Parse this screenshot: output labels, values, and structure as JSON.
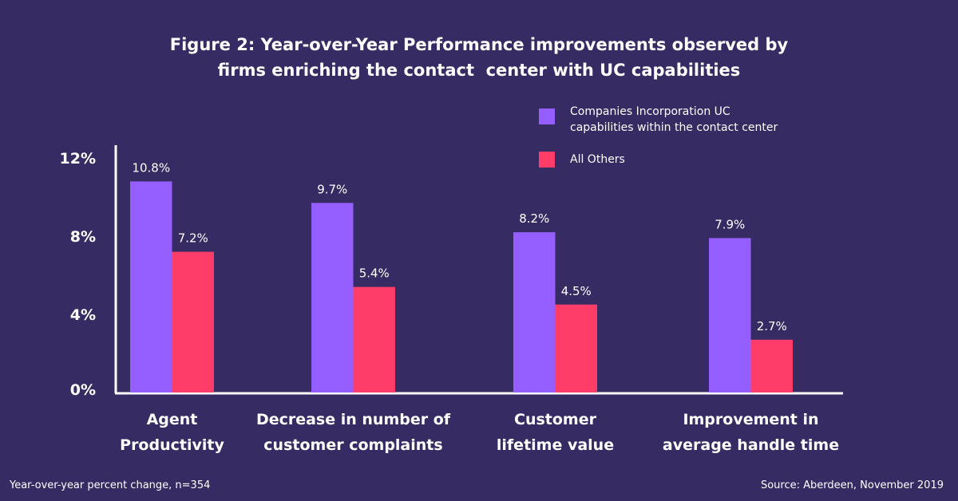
{
  "chart_data": {
    "type": "bar",
    "title": [
      "Figure 2: Year-over-Year Performance improvements observed by",
      "firms enriching the contact  center with UC capabilities"
    ],
    "categories": [
      [
        "Agent",
        "Productivity"
      ],
      [
        "Decrease in number of",
        "customer complaints"
      ],
      [
        "Customer",
        "lifetime value"
      ],
      [
        "Improvement in",
        "average handle time"
      ]
    ],
    "series": [
      {
        "name": "Companies Incorporation UC capabilities within the contact center",
        "legend_lines": [
          "Companies Incorporation UC",
          "capabilities within the contact center"
        ],
        "color": "#945ffe",
        "values": [
          10.8,
          9.7,
          8.2,
          7.9
        ],
        "labels": [
          "10.8%",
          "9.7%",
          "8.2%",
          "7.9%"
        ]
      },
      {
        "name": "All Others",
        "legend_lines": [
          "All Others"
        ],
        "color": "#ff3d68",
        "values": [
          7.2,
          5.4,
          4.5,
          2.7
        ],
        "labels": [
          "7.2%",
          "5.4%",
          "4.5%",
          "2.7%"
        ]
      }
    ],
    "yticks": [
      0,
      4,
      8,
      12
    ],
    "ytick_labels": [
      "0%",
      "4%",
      "8%",
      "12%"
    ],
    "ylim": [
      0,
      12
    ],
    "xlabel": "",
    "ylabel": "",
    "grid": false,
    "legend": "top-right"
  },
  "footer": {
    "note": "Year-over-year percent change, n=354",
    "source": "Source: Aberdeen, November 2019"
  }
}
